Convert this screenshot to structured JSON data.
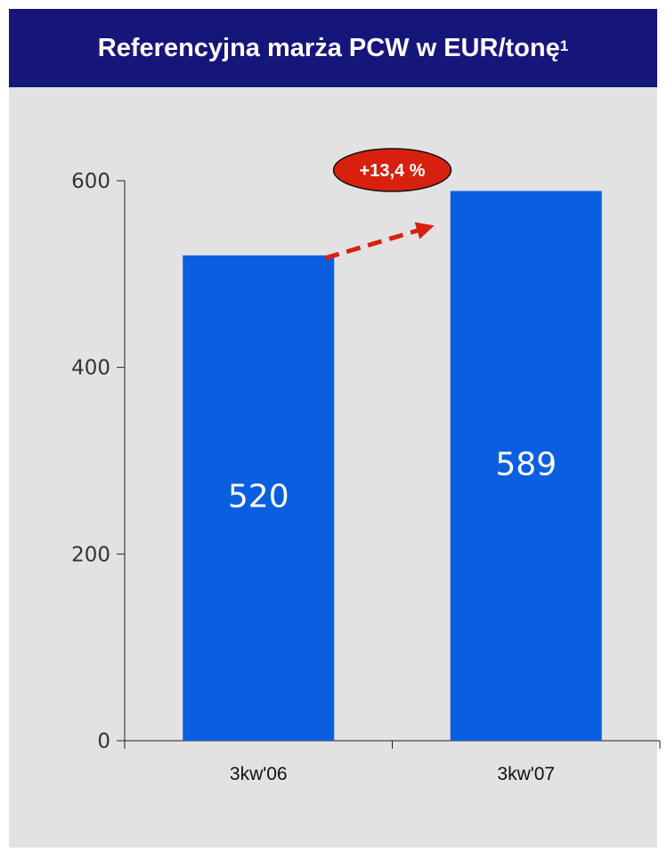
{
  "header": {
    "title": "Referencyjna marża PCW w EUR/tonę",
    "title_footnote": "1"
  },
  "chart_data": {
    "type": "bar",
    "title": "Referencyjna marża PCW w EUR/tonę",
    "categories": [
      "3kw'06",
      "3kw'07"
    ],
    "values": [
      520,
      589
    ],
    "value_labels": [
      "520",
      "589"
    ],
    "xlabel": "",
    "ylabel": "",
    "ylim": [
      0,
      600
    ],
    "yticks": [
      0,
      200,
      400,
      600
    ],
    "ytick_labels": [
      "0",
      "200",
      "400",
      "600"
    ],
    "grid": false,
    "legend": "none",
    "annotation": {
      "text": "+13,4 %",
      "from_category": "3kw'06",
      "to_category": "3kw'07"
    }
  },
  "colors": {
    "header_background": "#16167a",
    "panel_background": "#e2e2e2",
    "bar": "#0a5ee0",
    "bar_label": "#ffffff",
    "badge_fill": "#d8200f",
    "arrow": "#d8200f",
    "axis": "#222222"
  }
}
